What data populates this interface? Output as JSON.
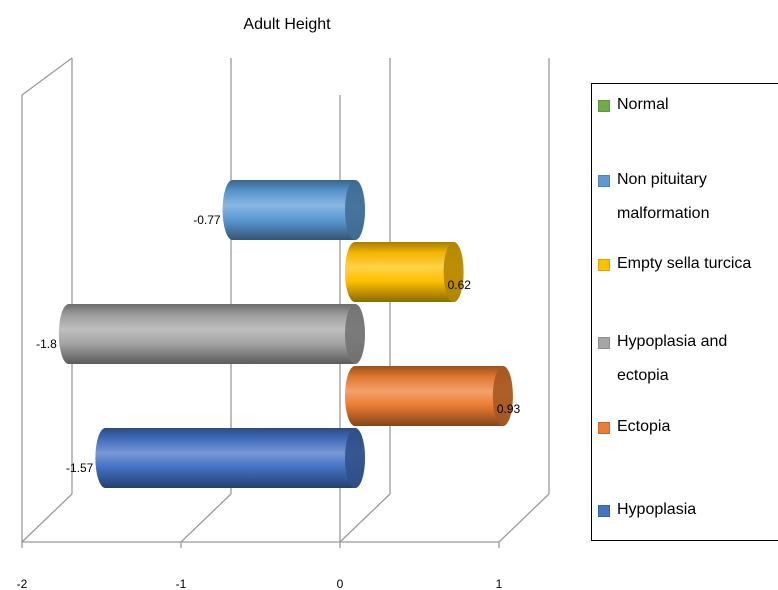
{
  "chart_data": {
    "type": "bar",
    "orientation": "horizontal",
    "style": "3d-cylinder",
    "title": "Adult Height",
    "xlabel": "",
    "ylabel": "",
    "xlim": [
      -2,
      1
    ],
    "x_ticks": [
      "-2",
      "-1",
      "0",
      "1"
    ],
    "grid": true,
    "legend_position": "right",
    "series": [
      {
        "name": "Normal",
        "value": null,
        "label": "",
        "color": "#70AD47"
      },
      {
        "name": "Non pituitary malformation",
        "value": -0.77,
        "label": "-0.77",
        "color": "#5B9BD5"
      },
      {
        "name": "Empty sella turcica",
        "value": 0.62,
        "label": "0.62",
        "color": "#FFC000"
      },
      {
        "name": "Hypoplasia and ectopia",
        "value": -1.8,
        "label": "-1.8",
        "color": "#A5A5A5"
      },
      {
        "name": "Ectopia",
        "value": 0.93,
        "label": "0.93",
        "color": "#ED7D31"
      },
      {
        "name": "Hypoplasia",
        "value": -1.57,
        "label": "-1.57",
        "color": "#4472C4"
      }
    ]
  }
}
